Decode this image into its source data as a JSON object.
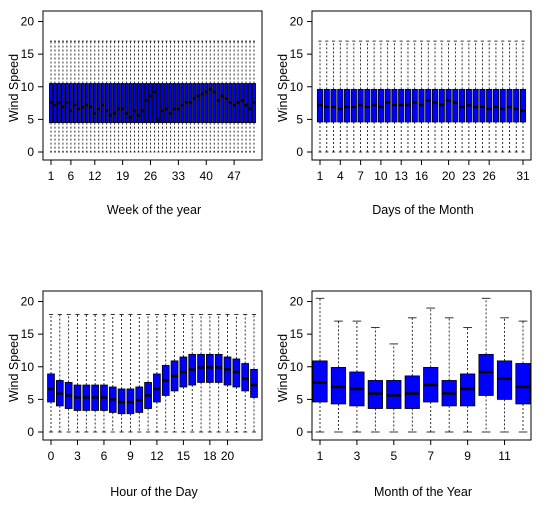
{
  "chart_data": [
    {
      "type": "box",
      "xlabel": "Week of the year",
      "ylabel": "Wind Speed",
      "ylim": [
        0,
        21
      ],
      "yticks": [
        0,
        5,
        10,
        15,
        20
      ],
      "xticks": [
        1,
        6,
        12,
        19,
        26,
        33,
        40,
        47
      ],
      "x_range": [
        1,
        52
      ],
      "box_color": "#0000FF",
      "medians": [
        7.6,
        7.2,
        7.6,
        6.9,
        7.6,
        6.3,
        7.2,
        6.6,
        6.9,
        7.2,
        6.9,
        5.9,
        6.6,
        7.2,
        6.3,
        5.6,
        5.9,
        6.6,
        6.6,
        5.9,
        5.3,
        6.3,
        5.6,
        6.3,
        7.9,
        8.6,
        9.2,
        4.9,
        6.3,
        6.6,
        5.9,
        6.6,
        6.6,
        7.2,
        7.6,
        7.6,
        8.2,
        8.6,
        8.9,
        9.2,
        9.6,
        9.2,
        7.9,
        8.6,
        8.2,
        7.6,
        7.2,
        7.6,
        7.9,
        7.2,
        6.6,
        7.6
      ],
      "q1": [
        4.5
      ],
      "q3": [
        10.5
      ],
      "whisker_top": 17,
      "whisker_bottom": 0
    },
    {
      "type": "box",
      "xlabel": "Days of the Month",
      "ylabel": "Wind Speed",
      "ylim": [
        0,
        21
      ],
      "yticks": [
        0,
        5,
        10,
        15,
        20
      ],
      "xticks": [
        1,
        4,
        7,
        10,
        13,
        16,
        20,
        23,
        26,
        31
      ],
      "x_range": [
        1,
        31
      ],
      "box_color": "#0000FF",
      "medians": [
        7.2,
        6.9,
        6.9,
        6.6,
        6.9,
        6.9,
        7.2,
        6.9,
        7.2,
        6.9,
        7.6,
        7.2,
        7.2,
        7.2,
        7.6,
        7.2,
        7.9,
        7.6,
        7.2,
        7.9,
        7.6,
        6.9,
        7.2,
        6.9,
        6.9,
        6.6,
        6.9,
        6.6,
        6.9,
        6.6,
        6.3
      ],
      "q1": [
        4.6
      ],
      "q3": [
        9.6
      ],
      "whisker_top": 17,
      "whisker_bottom": 0
    },
    {
      "type": "box",
      "xlabel": "Hour of the Day",
      "ylabel": "Wind Speed",
      "ylim": [
        0,
        21
      ],
      "yticks": [
        0,
        5,
        10,
        15,
        20
      ],
      "xticks": [
        0,
        3,
        6,
        9,
        12,
        15,
        18,
        20
      ],
      "x_range": [
        0,
        23
      ],
      "box_color": "#0000FF",
      "medians": [
        6.6,
        5.9,
        5.6,
        5.3,
        5.3,
        5.3,
        5.3,
        5.0,
        4.6,
        4.6,
        4.9,
        5.6,
        6.6,
        7.9,
        8.6,
        9.2,
        9.6,
        9.9,
        9.9,
        9.9,
        9.6,
        9.2,
        8.2,
        7.2
      ],
      "q1": [
        4.6,
        4.0,
        3.6,
        3.3,
        3.3,
        3.3,
        3.3,
        3.0,
        2.8,
        2.8,
        3.0,
        3.6,
        4.6,
        5.6,
        6.3,
        6.9,
        7.2,
        7.6,
        7.6,
        7.6,
        7.2,
        6.9,
        6.3,
        5.3
      ],
      "q3": [
        8.9,
        7.9,
        7.6,
        7.2,
        7.2,
        7.2,
        7.2,
        6.9,
        6.6,
        6.6,
        6.9,
        7.6,
        8.9,
        10.2,
        10.9,
        11.5,
        11.9,
        11.9,
        11.9,
        11.9,
        11.5,
        11.2,
        10.5,
        9.6
      ],
      "whisker_top": 18,
      "whisker_bottom": 0
    },
    {
      "type": "box",
      "xlabel": "Month of the Year",
      "ylabel": "Wind Speed",
      "ylim": [
        0,
        21
      ],
      "yticks": [
        0,
        5,
        10,
        15,
        20
      ],
      "xticks": [
        1,
        3,
        5,
        7,
        9,
        11
      ],
      "x_range": [
        1,
        12
      ],
      "box_color": "#0000FF",
      "medians": [
        7.6,
        6.9,
        6.6,
        5.9,
        5.6,
        5.9,
        7.2,
        5.9,
        6.6,
        9.2,
        8.2,
        6.9
      ],
      "q1": [
        4.6,
        4.3,
        4.0,
        3.6,
        3.6,
        3.6,
        4.6,
        4.0,
        4.0,
        5.6,
        5.0,
        4.3
      ],
      "q3": [
        10.9,
        9.9,
        9.2,
        7.9,
        7.9,
        8.6,
        9.9,
        7.9,
        8.9,
        11.9,
        10.9,
        10.5
      ],
      "whisker_top": [
        20.5,
        17,
        17,
        16,
        13.5,
        17.5,
        19,
        17.5,
        16,
        20.5,
        17.5,
        17
      ],
      "whisker_bottom": 0
    }
  ]
}
